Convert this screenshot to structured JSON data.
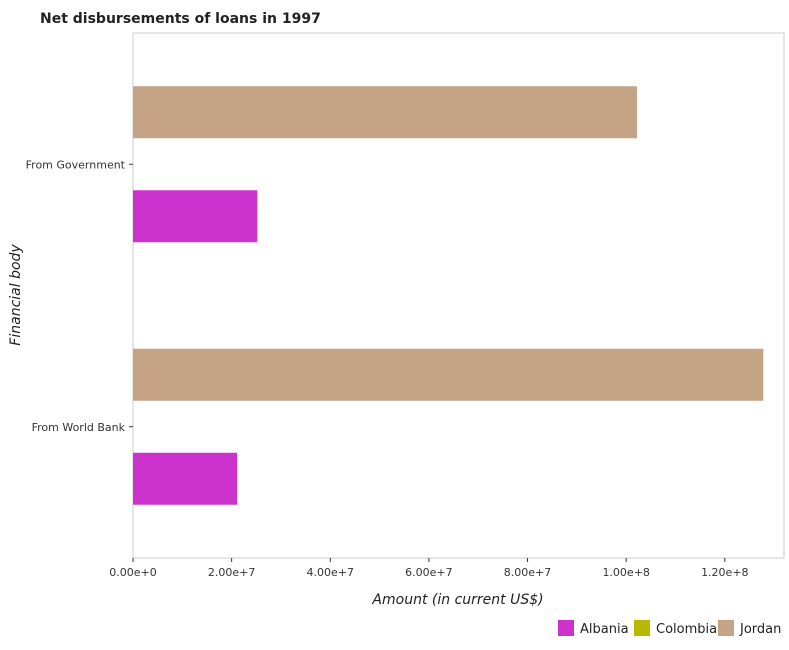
{
  "chart_data": {
    "type": "bar",
    "orientation": "horizontal",
    "title": "Net disbursements of loans in 1997",
    "xlabel": "Amount (in current US$)",
    "ylabel": "Financial body",
    "categories": [
      "From Government",
      "From World Bank"
    ],
    "series": [
      {
        "name": "Albania",
        "color": "#cc33cc",
        "values": [
          25200000,
          21100000
        ]
      },
      {
        "name": "Colombia",
        "color": "#b8b800",
        "values": [
          0,
          0
        ]
      },
      {
        "name": "Jordan",
        "color": "#c4a484",
        "values": [
          102200000,
          127800000
        ]
      }
    ],
    "xlim": [
      0,
      132000000
    ],
    "xticks": [
      0,
      20000000,
      40000000,
      60000000,
      80000000,
      100000000,
      120000000
    ],
    "xtick_labels": [
      "0.00e+0",
      "2.00e+7",
      "4.00e+7",
      "6.00e+7",
      "8.00e+7",
      "1.00e+8",
      "1.20e+8"
    ],
    "legend_position": "bottom-right",
    "grid": false
  }
}
